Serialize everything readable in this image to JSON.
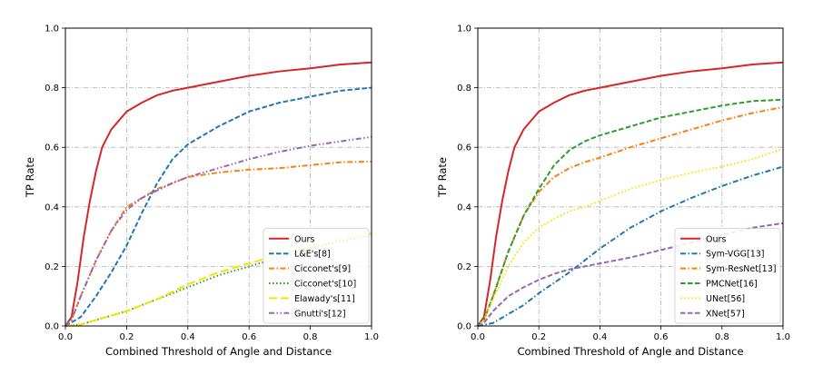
{
  "chart_data": [
    {
      "type": "line",
      "xlabel": "Combined Threshold of Angle and Distance",
      "ylabel": "TP Rate",
      "xlim": [
        0,
        1
      ],
      "ylim": [
        0,
        1
      ],
      "xticks": [
        "0.0",
        "0.2",
        "0.4",
        "0.6",
        "0.8",
        "1.0"
      ],
      "yticks": [
        "0.0",
        "0.2",
        "0.4",
        "0.6",
        "0.8",
        "1.0"
      ],
      "grid": true,
      "legend_position": "lower-right",
      "series": [
        {
          "name": "Ours",
          "color": "#d62728",
          "style": "solid",
          "x": [
            0,
            0.02,
            0.04,
            0.06,
            0.08,
            0.1,
            0.12,
            0.15,
            0.2,
            0.25,
            0.3,
            0.35,
            0.4,
            0.5,
            0.6,
            0.7,
            0.8,
            0.9,
            1.0
          ],
          "y": [
            0,
            0.03,
            0.15,
            0.3,
            0.42,
            0.52,
            0.6,
            0.66,
            0.72,
            0.75,
            0.775,
            0.79,
            0.8,
            0.82,
            0.84,
            0.855,
            0.865,
            0.878,
            0.885
          ]
        },
        {
          "name": "L&E's[8]",
          "color": "#1f77b4",
          "style": "dashed",
          "x": [
            0,
            0.05,
            0.1,
            0.15,
            0.2,
            0.25,
            0.3,
            0.35,
            0.4,
            0.5,
            0.6,
            0.7,
            0.8,
            0.9,
            1.0
          ],
          "y": [
            0,
            0.03,
            0.1,
            0.18,
            0.27,
            0.38,
            0.48,
            0.56,
            0.61,
            0.67,
            0.72,
            0.75,
            0.77,
            0.79,
            0.8
          ]
        },
        {
          "name": "Cicconet's[9]",
          "color": "#ff7f0e",
          "style": "dashdot",
          "x": [
            0,
            0.02,
            0.05,
            0.1,
            0.15,
            0.2,
            0.25,
            0.3,
            0.35,
            0.4,
            0.5,
            0.6,
            0.7,
            0.8,
            0.9,
            1.0
          ],
          "y": [
            0,
            0.02,
            0.1,
            0.22,
            0.32,
            0.4,
            0.43,
            0.46,
            0.48,
            0.5,
            0.515,
            0.525,
            0.53,
            0.54,
            0.55,
            0.552
          ]
        },
        {
          "name": "Cicconet's[10]",
          "color": "#2ca02c",
          "style": "dotted",
          "x": [
            0,
            0.05,
            0.1,
            0.2,
            0.3,
            0.4,
            0.5,
            0.6,
            0.7,
            0.8,
            0.9,
            1.0
          ],
          "y": [
            0,
            0.005,
            0.02,
            0.05,
            0.09,
            0.13,
            0.17,
            0.2,
            0.23,
            0.26,
            0.285,
            0.305
          ]
        },
        {
          "name": "Elawady's[11]",
          "color": "#f2e600",
          "style": "longdash",
          "x": [
            0,
            0.05,
            0.1,
            0.2,
            0.3,
            0.4,
            0.5,
            0.6,
            0.7,
            0.8,
            0.9,
            1.0
          ],
          "y": [
            0,
            0.005,
            0.02,
            0.05,
            0.09,
            0.14,
            0.18,
            0.21,
            0.24,
            0.265,
            0.29,
            0.31
          ]
        },
        {
          "name": "Gnutti's[12]",
          "color": "#9467bd",
          "style": "dashdotdot",
          "x": [
            0,
            0.02,
            0.05,
            0.1,
            0.15,
            0.2,
            0.25,
            0.3,
            0.35,
            0.4,
            0.5,
            0.6,
            0.7,
            0.8,
            0.9,
            1.0
          ],
          "y": [
            0,
            0.02,
            0.1,
            0.22,
            0.32,
            0.39,
            0.43,
            0.455,
            0.48,
            0.5,
            0.53,
            0.56,
            0.585,
            0.605,
            0.62,
            0.635
          ]
        }
      ],
      "legend": [
        {
          "label": "Ours",
          "series": 0
        },
        {
          "label": "L&E's[8]",
          "series": 1
        },
        {
          "label": "Cicconet's[9]",
          "series": 2
        },
        {
          "label": "Cicconet's[10]",
          "series": 3
        },
        {
          "label": "Elawady's[11]",
          "series": 4
        },
        {
          "label": "Gnutti's[12]",
          "series": 5
        }
      ]
    },
    {
      "type": "line",
      "xlabel": "Combined Threshold of Angle and Distance",
      "ylabel": "TP Rate",
      "xlim": [
        0,
        1
      ],
      "ylim": [
        0,
        1
      ],
      "xticks": [
        "0.0",
        "0.2",
        "0.4",
        "0.6",
        "0.8",
        "1.0"
      ],
      "yticks": [
        "0.0",
        "0.2",
        "0.4",
        "0.6",
        "0.8",
        "1.0"
      ],
      "grid": true,
      "legend_position": "lower-right",
      "series": [
        {
          "name": "Ours",
          "color": "#d62728",
          "style": "solid",
          "x": [
            0,
            0.02,
            0.04,
            0.06,
            0.08,
            0.1,
            0.12,
            0.15,
            0.2,
            0.25,
            0.3,
            0.35,
            0.4,
            0.5,
            0.6,
            0.7,
            0.8,
            0.9,
            1.0
          ],
          "y": [
            0,
            0.03,
            0.15,
            0.3,
            0.42,
            0.52,
            0.6,
            0.66,
            0.72,
            0.75,
            0.775,
            0.79,
            0.8,
            0.82,
            0.84,
            0.855,
            0.865,
            0.878,
            0.885
          ]
        },
        {
          "name": "Sym-VGG[13]",
          "color": "#1f77b4",
          "style": "dashdot",
          "x": [
            0,
            0.05,
            0.1,
            0.15,
            0.2,
            0.3,
            0.4,
            0.5,
            0.6,
            0.7,
            0.8,
            0.9,
            1.0
          ],
          "y": [
            0,
            0.01,
            0.04,
            0.07,
            0.11,
            0.18,
            0.26,
            0.33,
            0.385,
            0.43,
            0.47,
            0.505,
            0.535
          ]
        },
        {
          "name": "Sym-ResNet[13]",
          "color": "#ff7f0e",
          "style": "dashdot",
          "x": [
            0,
            0.02,
            0.05,
            0.1,
            0.15,
            0.2,
            0.25,
            0.3,
            0.35,
            0.4,
            0.5,
            0.6,
            0.7,
            0.8,
            0.9,
            1.0
          ],
          "y": [
            0,
            0.02,
            0.1,
            0.25,
            0.37,
            0.45,
            0.5,
            0.53,
            0.55,
            0.565,
            0.6,
            0.63,
            0.66,
            0.69,
            0.715,
            0.735
          ]
        },
        {
          "name": "PMCNet[16]",
          "color": "#2ca02c",
          "style": "dashed",
          "x": [
            0,
            0.02,
            0.05,
            0.1,
            0.15,
            0.2,
            0.25,
            0.3,
            0.35,
            0.4,
            0.5,
            0.6,
            0.7,
            0.8,
            0.9,
            1.0
          ],
          "y": [
            0,
            0.02,
            0.1,
            0.25,
            0.37,
            0.46,
            0.54,
            0.59,
            0.62,
            0.64,
            0.67,
            0.7,
            0.72,
            0.74,
            0.755,
            0.76
          ]
        },
        {
          "name": "UNet[56]",
          "color": "#f2e600",
          "style": "dotted",
          "x": [
            0,
            0.02,
            0.05,
            0.1,
            0.15,
            0.2,
            0.25,
            0.3,
            0.35,
            0.4,
            0.5,
            0.6,
            0.7,
            0.8,
            0.9,
            1.0
          ],
          "y": [
            0,
            0.02,
            0.09,
            0.2,
            0.28,
            0.33,
            0.36,
            0.385,
            0.4,
            0.42,
            0.46,
            0.49,
            0.515,
            0.535,
            0.56,
            0.595
          ]
        },
        {
          "name": "XNet[57]",
          "color": "#9467bd",
          "style": "dashed",
          "x": [
            0,
            0.02,
            0.05,
            0.1,
            0.15,
            0.2,
            0.25,
            0.3,
            0.35,
            0.4,
            0.5,
            0.6,
            0.7,
            0.8,
            0.9,
            1.0
          ],
          "y": [
            0,
            0.01,
            0.05,
            0.1,
            0.13,
            0.155,
            0.175,
            0.19,
            0.2,
            0.21,
            0.23,
            0.255,
            0.28,
            0.305,
            0.33,
            0.345
          ]
        }
      ],
      "legend": [
        {
          "label": "Ours",
          "series": 0
        },
        {
          "label": "Sym-VGG[13]",
          "series": 1
        },
        {
          "label": "Sym-ResNet[13]",
          "series": 2
        },
        {
          "label": "PMCNet[16]",
          "series": 3
        },
        {
          "label": "UNet[56]",
          "series": 4
        },
        {
          "label": "XNet[57]",
          "series": 5
        }
      ]
    }
  ]
}
